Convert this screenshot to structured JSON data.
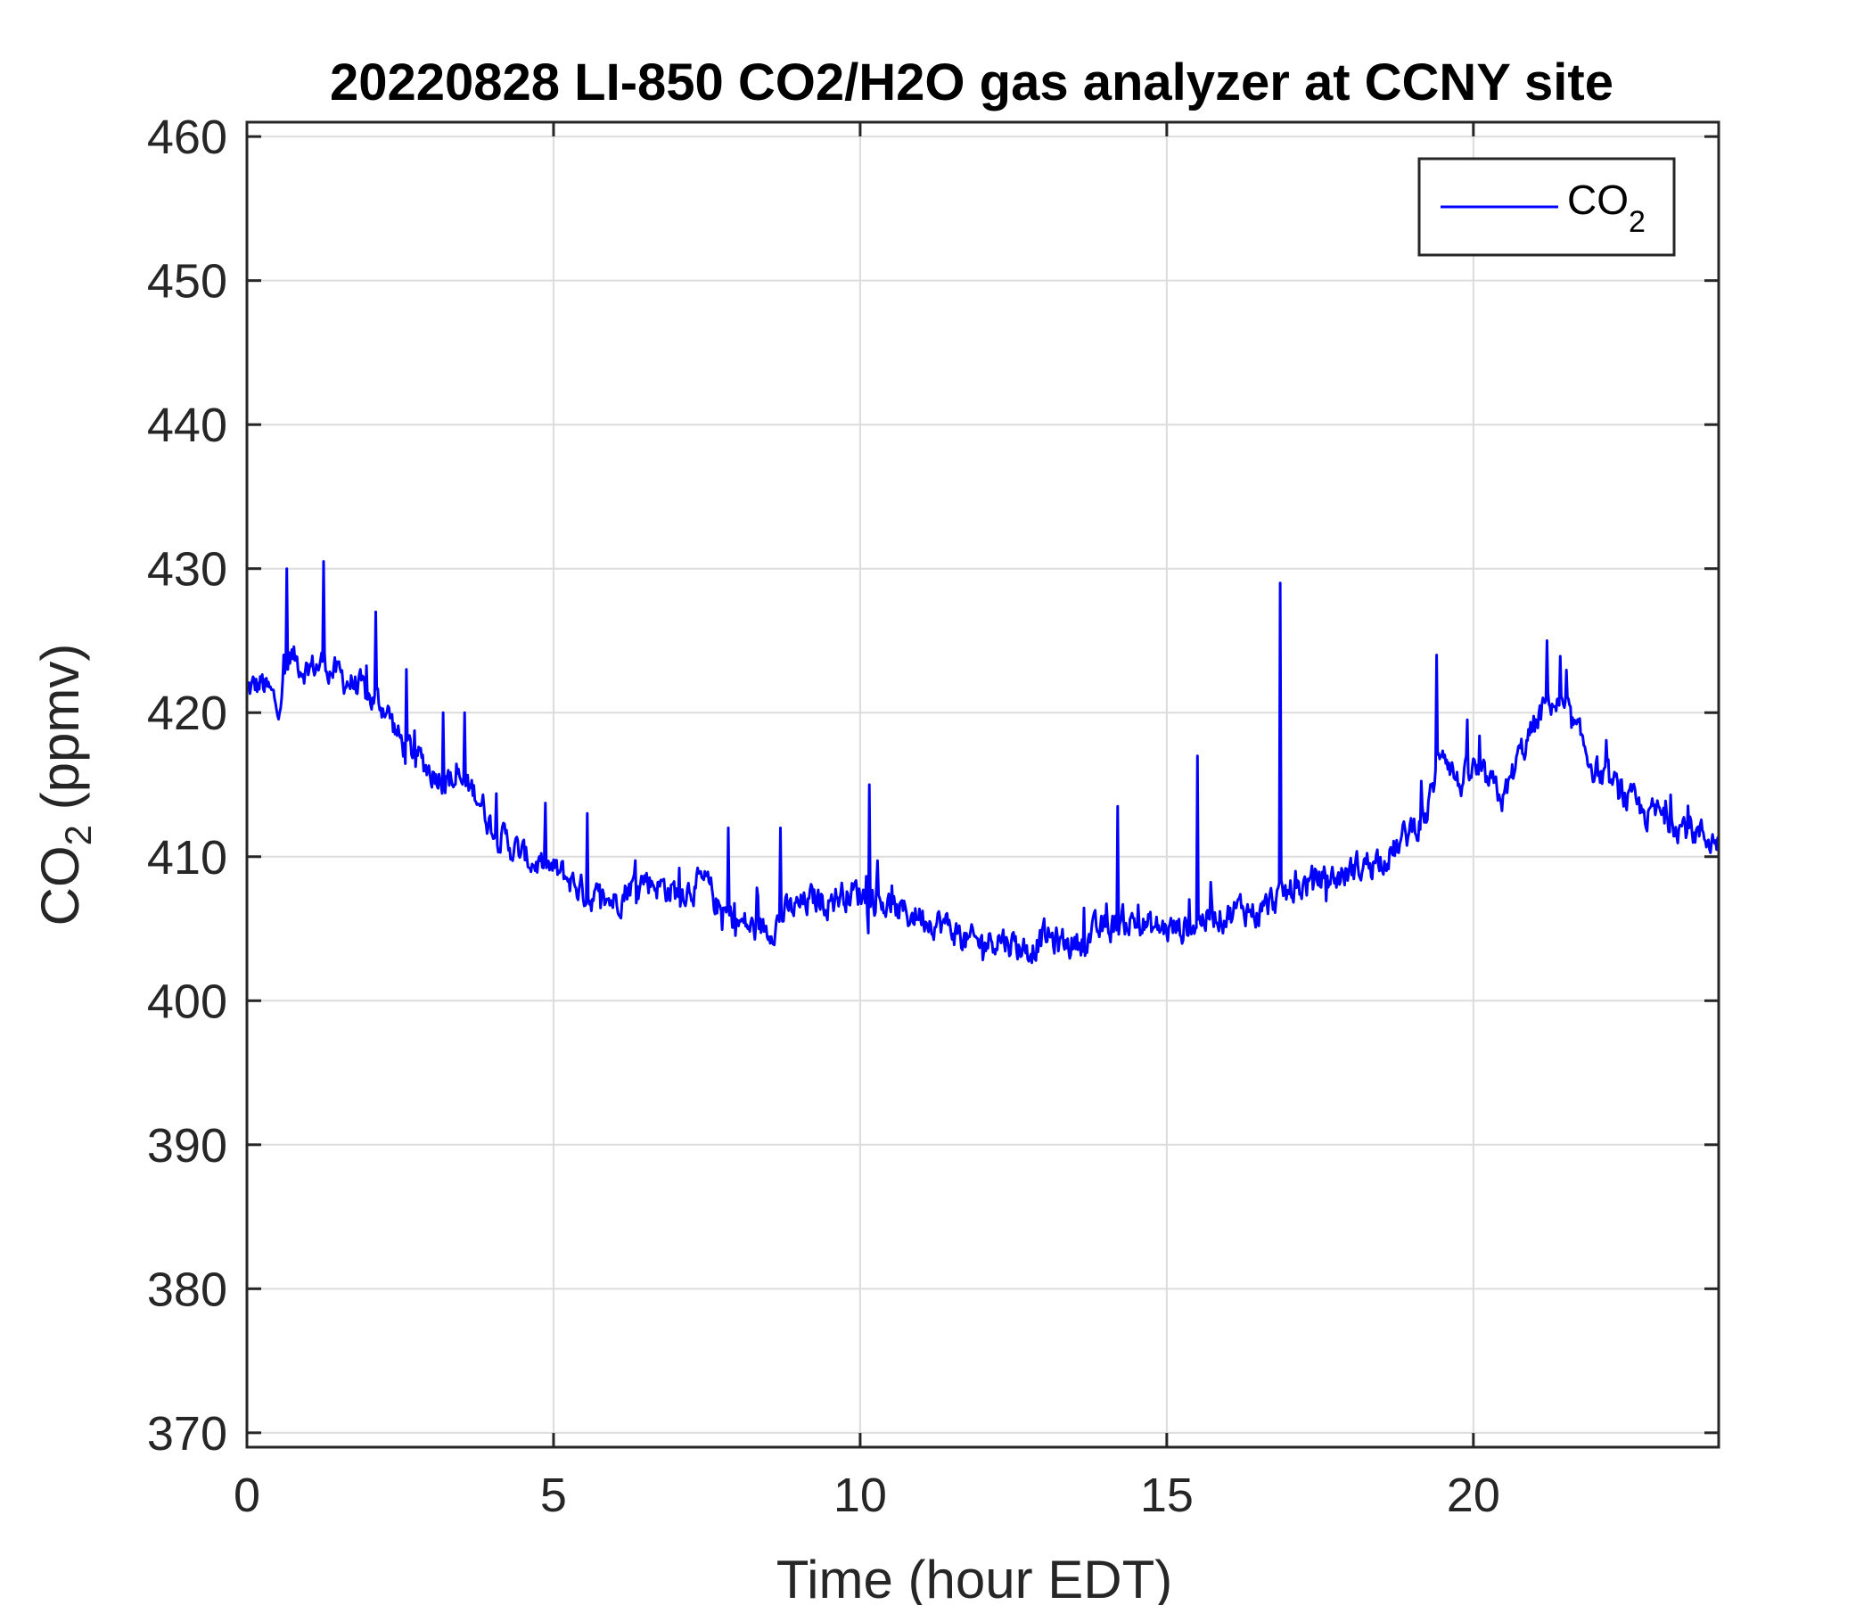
{
  "chart_data": {
    "type": "line",
    "title": "20220828 LI-850 CO2/H2O gas analyzer at CCNY site",
    "xlabel": "Time (hour EDT)",
    "ylabel": {
      "main": "CO",
      "sub": "2",
      "rest": " (ppmv)"
    },
    "xlim": [
      0,
      24
    ],
    "ylim": [
      369,
      461
    ],
    "xticks": [
      0,
      5,
      10,
      15,
      20
    ],
    "yticks": [
      370,
      380,
      390,
      400,
      410,
      420,
      430,
      440,
      450,
      460
    ],
    "grid": true,
    "legend_position": "top-right",
    "legend": {
      "main": "CO",
      "sub": "2"
    },
    "series": [
      {
        "name": "CO2",
        "color": "#0000ff",
        "x": [
          0,
          0.25,
          0.5,
          0.7,
          1.0,
          1.25,
          1.5,
          1.75,
          2.0,
          2.25,
          2.5,
          2.75,
          3.0,
          3.25,
          3.5,
          3.75,
          4.0,
          4.25,
          4.5,
          4.75,
          5.0,
          5.25,
          5.5,
          5.75,
          6.0,
          6.25,
          6.5,
          6.75,
          7.0,
          7.25,
          7.5,
          7.75,
          8.0,
          8.25,
          8.5,
          8.75,
          9.0,
          9.25,
          9.5,
          9.75,
          10.0,
          10.25,
          10.5,
          10.75,
          11.0,
          11.25,
          11.5,
          11.75,
          12.0,
          12.25,
          12.5,
          12.75,
          13.0,
          13.25,
          13.5,
          13.75,
          14.0,
          14.25,
          14.5,
          14.75,
          15.0,
          15.25,
          15.5,
          15.75,
          16.0,
          16.25,
          16.5,
          16.75,
          17.0,
          17.25,
          17.5,
          17.75,
          18.0,
          18.25,
          18.5,
          18.75,
          19.0,
          19.25,
          19.5,
          19.75,
          20.0,
          20.25,
          20.5,
          20.75,
          21.0,
          21.25,
          21.5,
          21.75,
          22.0,
          22.25,
          22.5,
          22.75,
          23.0,
          23.25,
          23.5,
          23.75,
          24.0
        ],
        "y": [
          421.5,
          422,
          420.5,
          424,
          423,
          423.5,
          422.5,
          422,
          421,
          420.5,
          418,
          417,
          416,
          415.5,
          415,
          414.5,
          412,
          411,
          410,
          409.5,
          409,
          408.5,
          407.5,
          407,
          407,
          408,
          408.5,
          408,
          407.5,
          408,
          408,
          406,
          405.5,
          405,
          405,
          406,
          406.5,
          407,
          407,
          407.5,
          407.5,
          407,
          406.5,
          406,
          406,
          405.5,
          405,
          404,
          404,
          404.5,
          404,
          403.5,
          404.5,
          404,
          404,
          404.5,
          405,
          405.5,
          405.5,
          405,
          405,
          405,
          405.5,
          406,
          406,
          406.5,
          406,
          407,
          407.5,
          408,
          408.5,
          408.5,
          409,
          409.5,
          410,
          410.5,
          412,
          413,
          418,
          415,
          416,
          415,
          414,
          417,
          419,
          421,
          420,
          418,
          416,
          415,
          414,
          413,
          413,
          412.5,
          412,
          411.5,
          411
        ],
        "noise_amplitude": 1.2,
        "spikes": [
          [
            0.65,
            430
          ],
          [
            1.25,
            430.5
          ],
          [
            2.1,
            427
          ],
          [
            2.6,
            423
          ],
          [
            3.2,
            420
          ],
          [
            3.55,
            420
          ],
          [
            5.55,
            413
          ],
          [
            7.85,
            412
          ],
          [
            8.7,
            412
          ],
          [
            10.15,
            415
          ],
          [
            16.85,
            429
          ],
          [
            15.5,
            417
          ],
          [
            14.2,
            413.5
          ],
          [
            19.4,
            424
          ],
          [
            21.2,
            425
          ]
        ]
      }
    ]
  }
}
